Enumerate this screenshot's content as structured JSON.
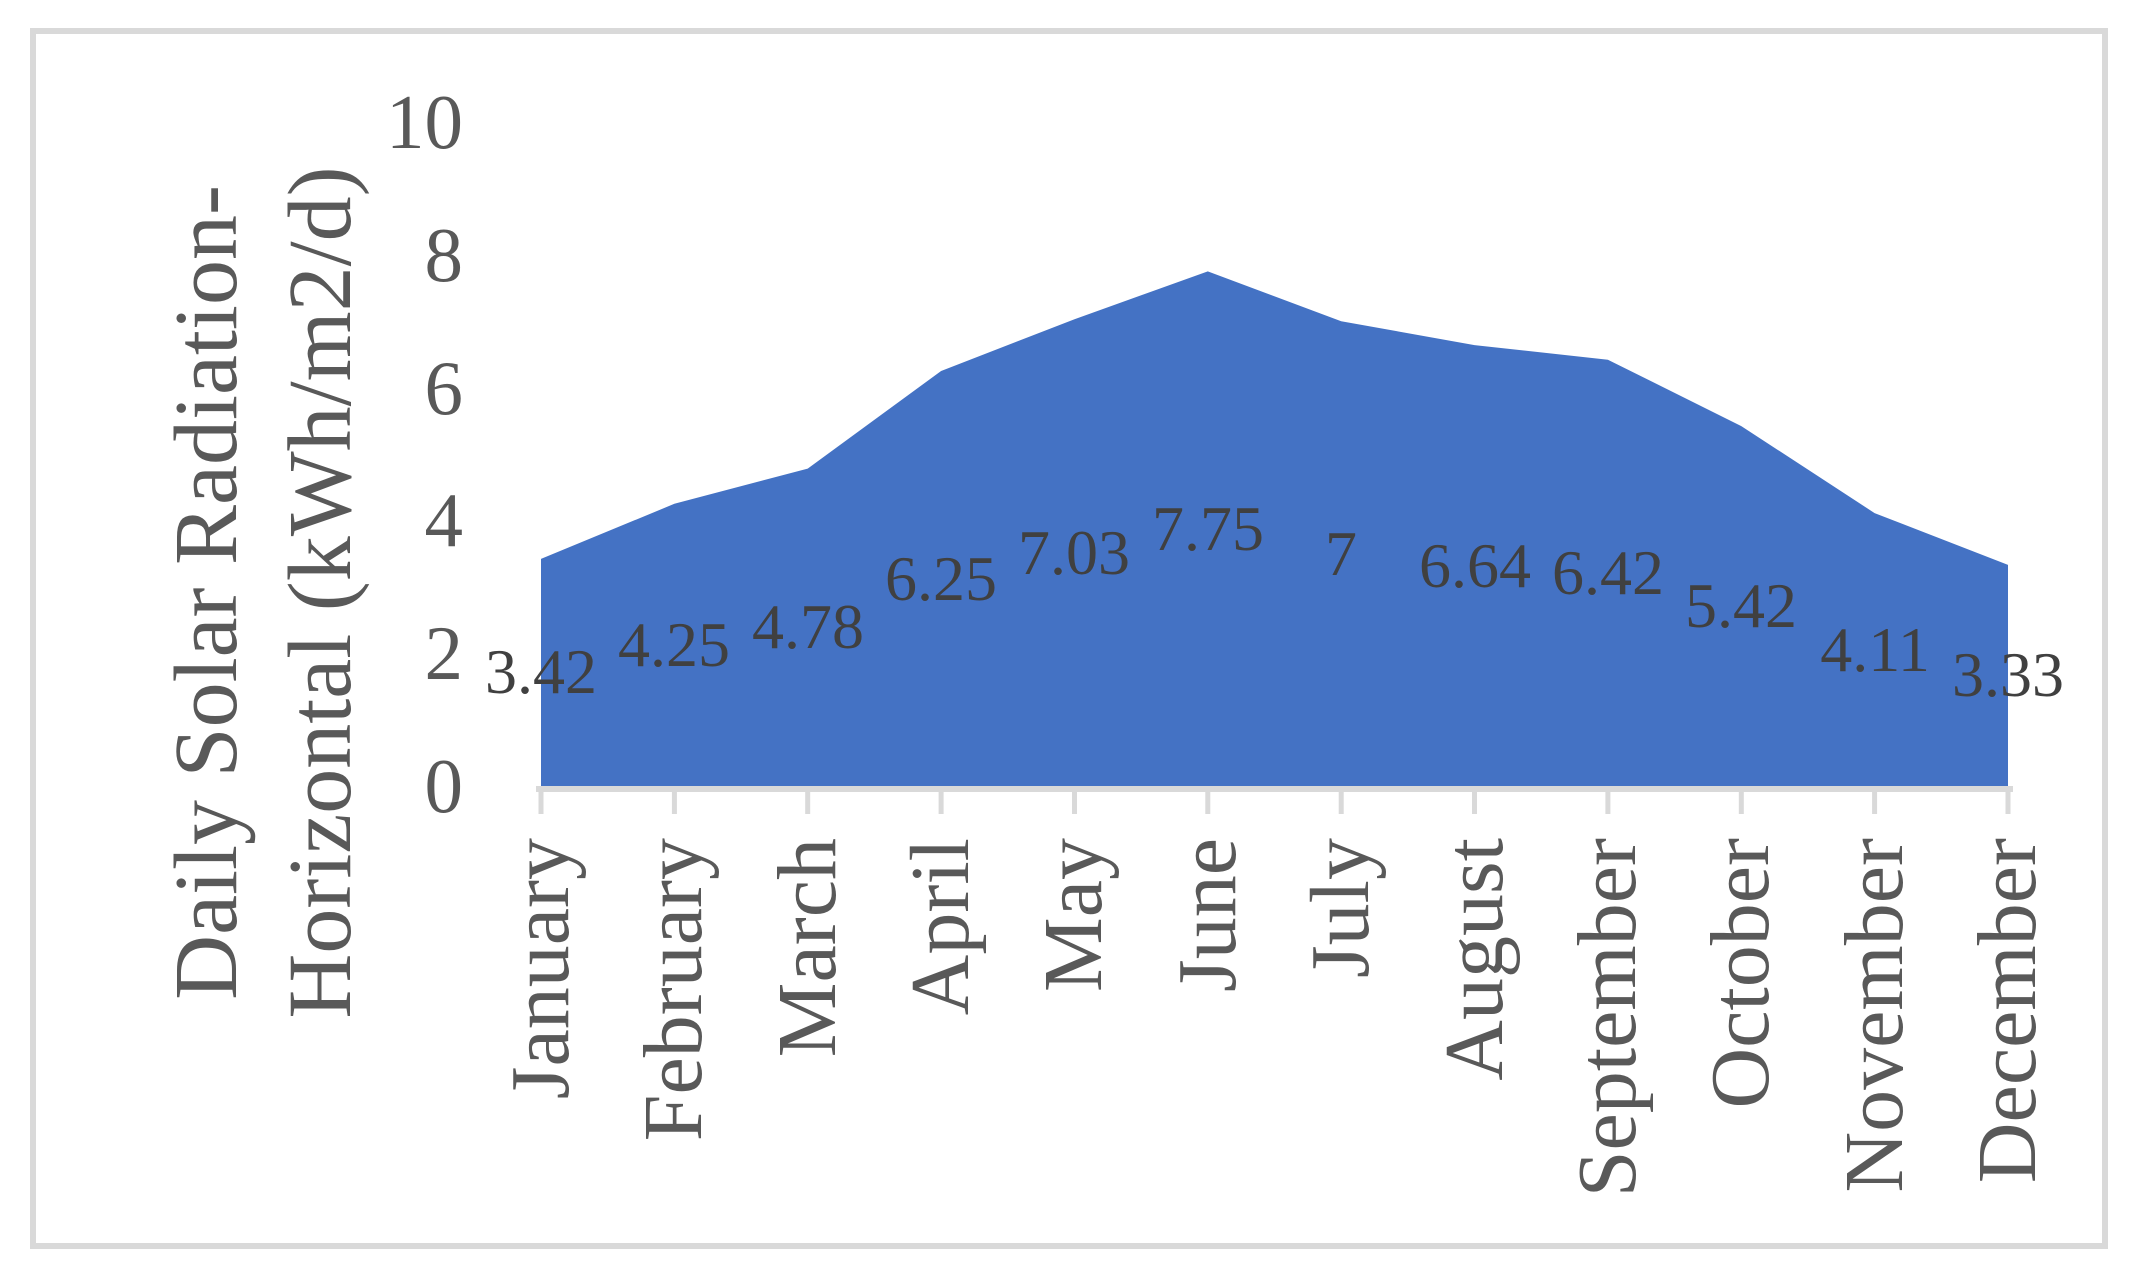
{
  "figure": {
    "background": "#ffffff",
    "frame_color": "#d9d9d9"
  },
  "chart_data": {
    "type": "area",
    "title": "",
    "ylabel_line1": "Daily Solar Radiation-",
    "ylabel_line2": "Horizontal (kWh/m2/d)",
    "categories": [
      "January",
      "February",
      "March",
      "April",
      "May",
      "June",
      "July",
      "August",
      "September",
      "October",
      "November",
      "December"
    ],
    "values": [
      3.42,
      4.25,
      4.78,
      6.25,
      7.03,
      7.75,
      7,
      6.64,
      6.42,
      5.42,
      4.11,
      3.33
    ],
    "data_labels": [
      "3.42",
      "4.25",
      "4.78",
      "6.25",
      "7.03",
      "7.75",
      "7",
      "6.64",
      "6.42",
      "5.42",
      "4.11",
      "3.33"
    ],
    "yticks": [
      0,
      2,
      4,
      6,
      8,
      10
    ],
    "ytick_labels": [
      "0",
      "2",
      "4",
      "6",
      "8",
      "10"
    ],
    "ylim": [
      0,
      10
    ],
    "grid": false,
    "legend": "none",
    "area_color": "#4472C4",
    "axis_text_color": "#595959",
    "data_label_color": "#404040",
    "axis_line_color": "#d9d9d9"
  }
}
